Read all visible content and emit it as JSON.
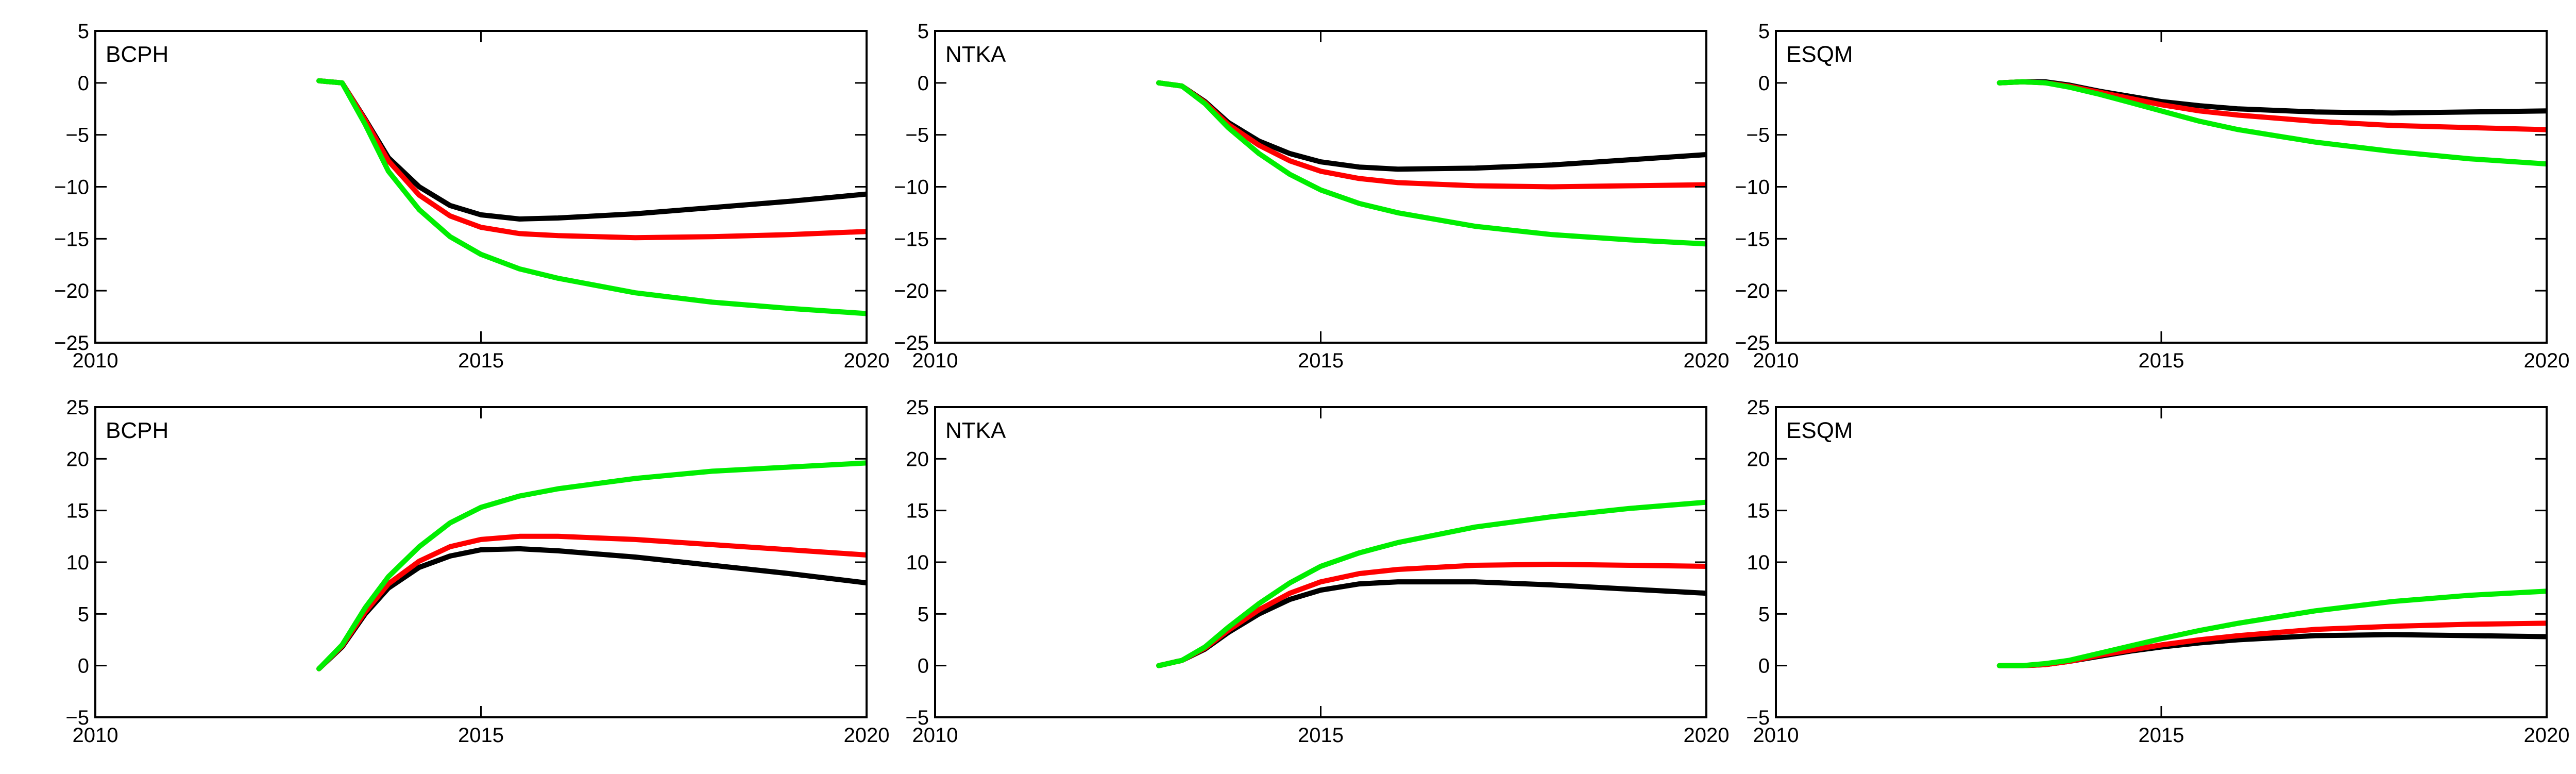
{
  "chart_data": [
    {
      "type": "line",
      "title": "BCPH",
      "xlim": [
        2010,
        2020
      ],
      "ylim": [
        -25,
        5
      ],
      "xticks": [
        2010,
        2015,
        2020
      ],
      "yticks": [
        -25,
        -20,
        -15,
        -10,
        -5,
        0,
        5
      ],
      "series": [
        {
          "color": "#000000",
          "x": [
            2012.9,
            2013.2,
            2013.5,
            2013.8,
            2014.2,
            2014.6,
            2015.0,
            2015.5,
            2016.0,
            2017.0,
            2018.0,
            2019.0,
            2020.0
          ],
          "y": [
            0.2,
            0.0,
            -3.5,
            -7.2,
            -10.0,
            -11.8,
            -12.7,
            -13.1,
            -13.0,
            -12.6,
            -12.0,
            -11.4,
            -10.7
          ]
        },
        {
          "color": "#ff0000",
          "x": [
            2012.9,
            2013.2,
            2013.5,
            2013.8,
            2014.2,
            2014.6,
            2015.0,
            2015.5,
            2016.0,
            2017.0,
            2018.0,
            2019.0,
            2020.0
          ],
          "y": [
            0.2,
            0.0,
            -3.6,
            -7.5,
            -10.8,
            -12.8,
            -13.9,
            -14.5,
            -14.7,
            -14.9,
            -14.8,
            -14.6,
            -14.3
          ]
        },
        {
          "color": "#00ee00",
          "x": [
            2012.9,
            2013.2,
            2013.5,
            2013.8,
            2014.2,
            2014.6,
            2015.0,
            2015.5,
            2016.0,
            2017.0,
            2018.0,
            2019.0,
            2020.0
          ],
          "y": [
            0.2,
            0.0,
            -4.0,
            -8.5,
            -12.2,
            -14.8,
            -16.5,
            -17.9,
            -18.8,
            -20.2,
            -21.1,
            -21.7,
            -22.2
          ]
        }
      ]
    },
    {
      "type": "line",
      "title": "NTKA",
      "xlim": [
        2010,
        2020
      ],
      "ylim": [
        -25,
        5
      ],
      "xticks": [
        2010,
        2015,
        2020
      ],
      "yticks": [
        -25,
        -20,
        -15,
        -10,
        -5,
        0,
        5
      ],
      "series": [
        {
          "color": "#000000",
          "x": [
            2012.9,
            2013.2,
            2013.5,
            2013.8,
            2014.2,
            2014.6,
            2015.0,
            2015.5,
            2016.0,
            2017.0,
            2018.0,
            2019.0,
            2020.0
          ],
          "y": [
            0.0,
            -0.3,
            -1.8,
            -3.8,
            -5.6,
            -6.8,
            -7.6,
            -8.1,
            -8.3,
            -8.2,
            -7.9,
            -7.4,
            -6.9
          ]
        },
        {
          "color": "#ff0000",
          "x": [
            2012.9,
            2013.2,
            2013.5,
            2013.8,
            2014.2,
            2014.6,
            2015.0,
            2015.5,
            2016.0,
            2017.0,
            2018.0,
            2019.0,
            2020.0
          ],
          "y": [
            0.0,
            -0.3,
            -1.9,
            -4.0,
            -6.0,
            -7.5,
            -8.5,
            -9.2,
            -9.6,
            -9.9,
            -10.0,
            -9.9,
            -9.8
          ]
        },
        {
          "color": "#00ee00",
          "x": [
            2012.9,
            2013.2,
            2013.5,
            2013.8,
            2014.2,
            2014.6,
            2015.0,
            2015.5,
            2016.0,
            2017.0,
            2018.0,
            2019.0,
            2020.0
          ],
          "y": [
            0.0,
            -0.3,
            -2.0,
            -4.3,
            -6.8,
            -8.8,
            -10.3,
            -11.6,
            -12.5,
            -13.8,
            -14.6,
            -15.1,
            -15.5
          ]
        }
      ]
    },
    {
      "type": "line",
      "title": "ESQM",
      "xlim": [
        2010,
        2020
      ],
      "ylim": [
        -25,
        5
      ],
      "xticks": [
        2010,
        2015,
        2020
      ],
      "yticks": [
        -25,
        -20,
        -15,
        -10,
        -5,
        0,
        5
      ],
      "series": [
        {
          "color": "#000000",
          "x": [
            2012.9,
            2013.2,
            2013.5,
            2013.8,
            2014.2,
            2014.6,
            2015.0,
            2015.5,
            2016.0,
            2017.0,
            2018.0,
            2019.0,
            2020.0
          ],
          "y": [
            0.0,
            0.1,
            0.1,
            -0.2,
            -0.8,
            -1.3,
            -1.8,
            -2.2,
            -2.5,
            -2.8,
            -2.9,
            -2.8,
            -2.7
          ]
        },
        {
          "color": "#ff0000",
          "x": [
            2012.9,
            2013.2,
            2013.5,
            2013.8,
            2014.2,
            2014.6,
            2015.0,
            2015.5,
            2016.0,
            2017.0,
            2018.0,
            2019.0,
            2020.0
          ],
          "y": [
            0.0,
            0.1,
            0.0,
            -0.3,
            -0.9,
            -1.5,
            -2.1,
            -2.7,
            -3.1,
            -3.7,
            -4.1,
            -4.3,
            -4.5
          ]
        },
        {
          "color": "#00ee00",
          "x": [
            2012.9,
            2013.2,
            2013.5,
            2013.8,
            2014.2,
            2014.6,
            2015.0,
            2015.5,
            2016.0,
            2017.0,
            2018.0,
            2019.0,
            2020.0
          ],
          "y": [
            0.0,
            0.1,
            0.0,
            -0.4,
            -1.1,
            -1.9,
            -2.7,
            -3.7,
            -4.5,
            -5.7,
            -6.6,
            -7.3,
            -7.8
          ]
        }
      ]
    },
    {
      "type": "line",
      "title": "BCPH",
      "xlim": [
        2010,
        2020
      ],
      "ylim": [
        -5,
        25
      ],
      "xticks": [
        2010,
        2015,
        2020
      ],
      "yticks": [
        -5,
        0,
        5,
        10,
        15,
        20,
        25
      ],
      "series": [
        {
          "color": "#000000",
          "x": [
            2012.9,
            2013.2,
            2013.5,
            2013.8,
            2014.2,
            2014.6,
            2015.0,
            2015.5,
            2016.0,
            2017.0,
            2018.0,
            2019.0,
            2020.0
          ],
          "y": [
            -0.3,
            1.8,
            5.0,
            7.5,
            9.5,
            10.6,
            11.2,
            11.3,
            11.1,
            10.5,
            9.7,
            8.9,
            8.0
          ]
        },
        {
          "color": "#ff0000",
          "x": [
            2012.9,
            2013.2,
            2013.5,
            2013.8,
            2014.2,
            2014.6,
            2015.0,
            2015.5,
            2016.0,
            2017.0,
            2018.0,
            2019.0,
            2020.0
          ],
          "y": [
            -0.3,
            1.9,
            5.2,
            7.9,
            10.1,
            11.5,
            12.2,
            12.5,
            12.5,
            12.2,
            11.7,
            11.2,
            10.7
          ]
        },
        {
          "color": "#00ee00",
          "x": [
            2012.9,
            2013.2,
            2013.5,
            2013.8,
            2014.2,
            2014.6,
            2015.0,
            2015.5,
            2016.0,
            2017.0,
            2018.0,
            2019.0,
            2020.0
          ],
          "y": [
            -0.3,
            2.0,
            5.6,
            8.6,
            11.5,
            13.8,
            15.3,
            16.4,
            17.1,
            18.1,
            18.8,
            19.2,
            19.6
          ]
        }
      ]
    },
    {
      "type": "line",
      "title": "NTKA",
      "xlim": [
        2010,
        2020
      ],
      "ylim": [
        -5,
        25
      ],
      "xticks": [
        2010,
        2015,
        2020
      ],
      "yticks": [
        -5,
        0,
        5,
        10,
        15,
        20,
        25
      ],
      "series": [
        {
          "color": "#000000",
          "x": [
            2012.9,
            2013.2,
            2013.5,
            2013.8,
            2014.2,
            2014.6,
            2015.0,
            2015.5,
            2016.0,
            2017.0,
            2018.0,
            2019.0,
            2020.0
          ],
          "y": [
            0.0,
            0.5,
            1.6,
            3.2,
            5.0,
            6.4,
            7.3,
            7.9,
            8.1,
            8.1,
            7.8,
            7.4,
            7.0
          ]
        },
        {
          "color": "#ff0000",
          "x": [
            2012.9,
            2013.2,
            2013.5,
            2013.8,
            2014.2,
            2014.6,
            2015.0,
            2015.5,
            2016.0,
            2017.0,
            2018.0,
            2019.0,
            2020.0
          ],
          "y": [
            0.0,
            0.5,
            1.7,
            3.4,
            5.4,
            7.0,
            8.1,
            8.9,
            9.3,
            9.7,
            9.8,
            9.7,
            9.6
          ]
        },
        {
          "color": "#00ee00",
          "x": [
            2012.9,
            2013.2,
            2013.5,
            2013.8,
            2014.2,
            2014.6,
            2015.0,
            2015.5,
            2016.0,
            2017.0,
            2018.0,
            2019.0,
            2020.0
          ],
          "y": [
            0.0,
            0.5,
            1.8,
            3.7,
            6.0,
            8.0,
            9.6,
            10.9,
            11.9,
            13.4,
            14.4,
            15.2,
            15.8
          ]
        }
      ]
    },
    {
      "type": "line",
      "title": "ESQM",
      "xlim": [
        2010,
        2020
      ],
      "ylim": [
        -5,
        25
      ],
      "xticks": [
        2010,
        2015,
        2020
      ],
      "yticks": [
        -5,
        0,
        5,
        10,
        15,
        20,
        25
      ],
      "series": [
        {
          "color": "#000000",
          "x": [
            2012.9,
            2013.2,
            2013.5,
            2013.8,
            2014.2,
            2014.6,
            2015.0,
            2015.5,
            2016.0,
            2017.0,
            2018.0,
            2019.0,
            2020.0
          ],
          "y": [
            0.0,
            0.0,
            0.1,
            0.4,
            0.9,
            1.4,
            1.8,
            2.2,
            2.5,
            2.9,
            3.0,
            2.9,
            2.8
          ]
        },
        {
          "color": "#ff0000",
          "x": [
            2012.9,
            2013.2,
            2013.5,
            2013.8,
            2014.2,
            2014.6,
            2015.0,
            2015.5,
            2016.0,
            2017.0,
            2018.0,
            2019.0,
            2020.0
          ],
          "y": [
            0.0,
            0.0,
            0.1,
            0.4,
            1.0,
            1.5,
            2.0,
            2.5,
            2.9,
            3.5,
            3.8,
            4.0,
            4.1
          ]
        },
        {
          "color": "#00ee00",
          "x": [
            2012.9,
            2013.2,
            2013.5,
            2013.8,
            2014.2,
            2014.6,
            2015.0,
            2015.5,
            2016.0,
            2017.0,
            2018.0,
            2019.0,
            2020.0
          ],
          "y": [
            0.0,
            0.0,
            0.2,
            0.5,
            1.2,
            1.9,
            2.6,
            3.4,
            4.1,
            5.3,
            6.2,
            6.8,
            7.2
          ]
        }
      ]
    }
  ]
}
